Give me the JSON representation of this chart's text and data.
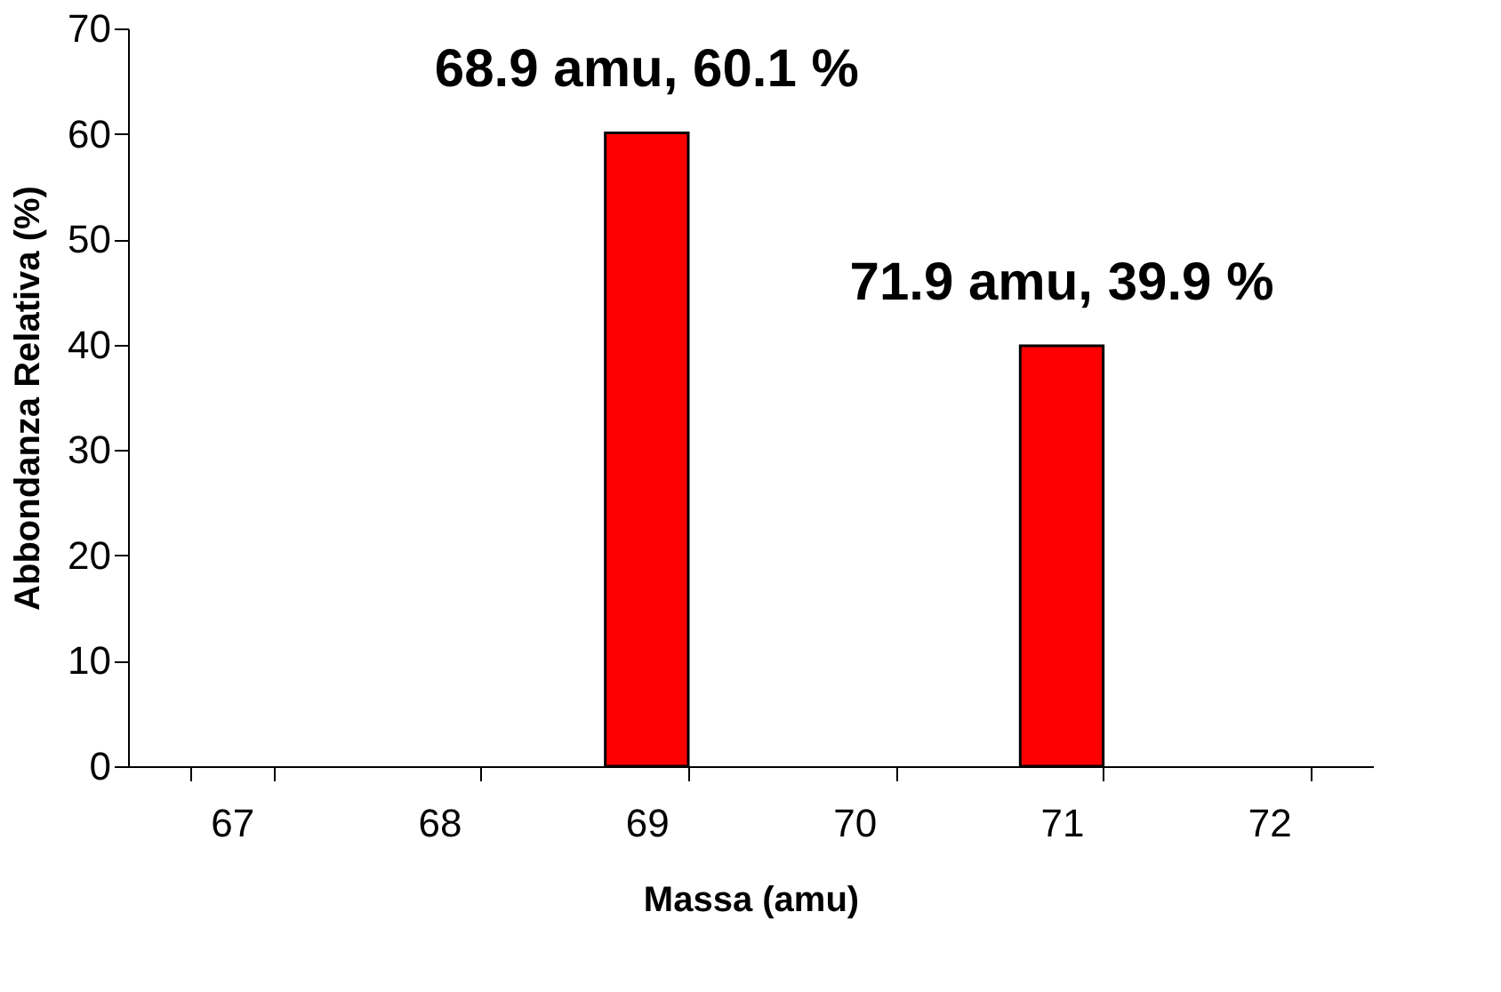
{
  "chart_data": {
    "type": "bar",
    "xlabel": "Massa (amu)",
    "ylabel": "Abbondanza Relativa (%)",
    "categories": [
      "67",
      "68",
      "69",
      "70",
      "71",
      "72"
    ],
    "values": [
      null,
      null,
      60.1,
      null,
      39.9,
      null
    ],
    "color": "#ff0000",
    "ylim": [
      0,
      70
    ],
    "yticks": [
      0,
      10,
      20,
      30,
      40,
      50,
      60,
      70
    ],
    "grid": false,
    "annotations": [
      {
        "text": "68.9 amu, 60.1 %",
        "x": "69",
        "y": 60.1
      },
      {
        "text": "71.9 amu, 39.9 %",
        "x": "71",
        "y": 39.9
      }
    ]
  }
}
